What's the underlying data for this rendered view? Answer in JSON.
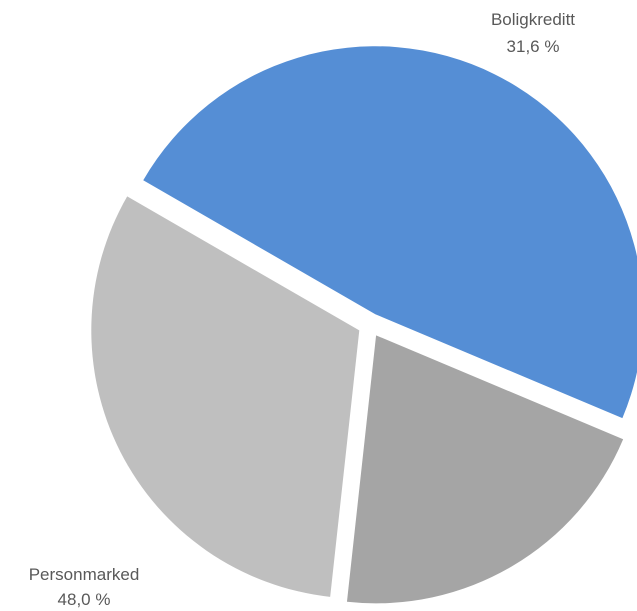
{
  "chart_data": {
    "type": "pie",
    "title": "",
    "slices": [
      {
        "label": "Personmarked",
        "value": 48.0,
        "value_label": "48,0 %",
        "color": "#558ED5",
        "show_label": true,
        "label_anchor": "bottom-left"
      },
      {
        "label": "",
        "value": 20.4,
        "value_label": "",
        "color": "#A5A5A5",
        "show_label": false,
        "label_anchor": ""
      },
      {
        "label": "Boligkreditt",
        "value": 31.6,
        "value_label": "31,6 %",
        "color": "#BFBFBF",
        "show_label": true,
        "label_anchor": "top-right"
      }
    ],
    "exploded": true,
    "legend": "none",
    "label_color": "#595959",
    "background": "#FFFFFF"
  }
}
